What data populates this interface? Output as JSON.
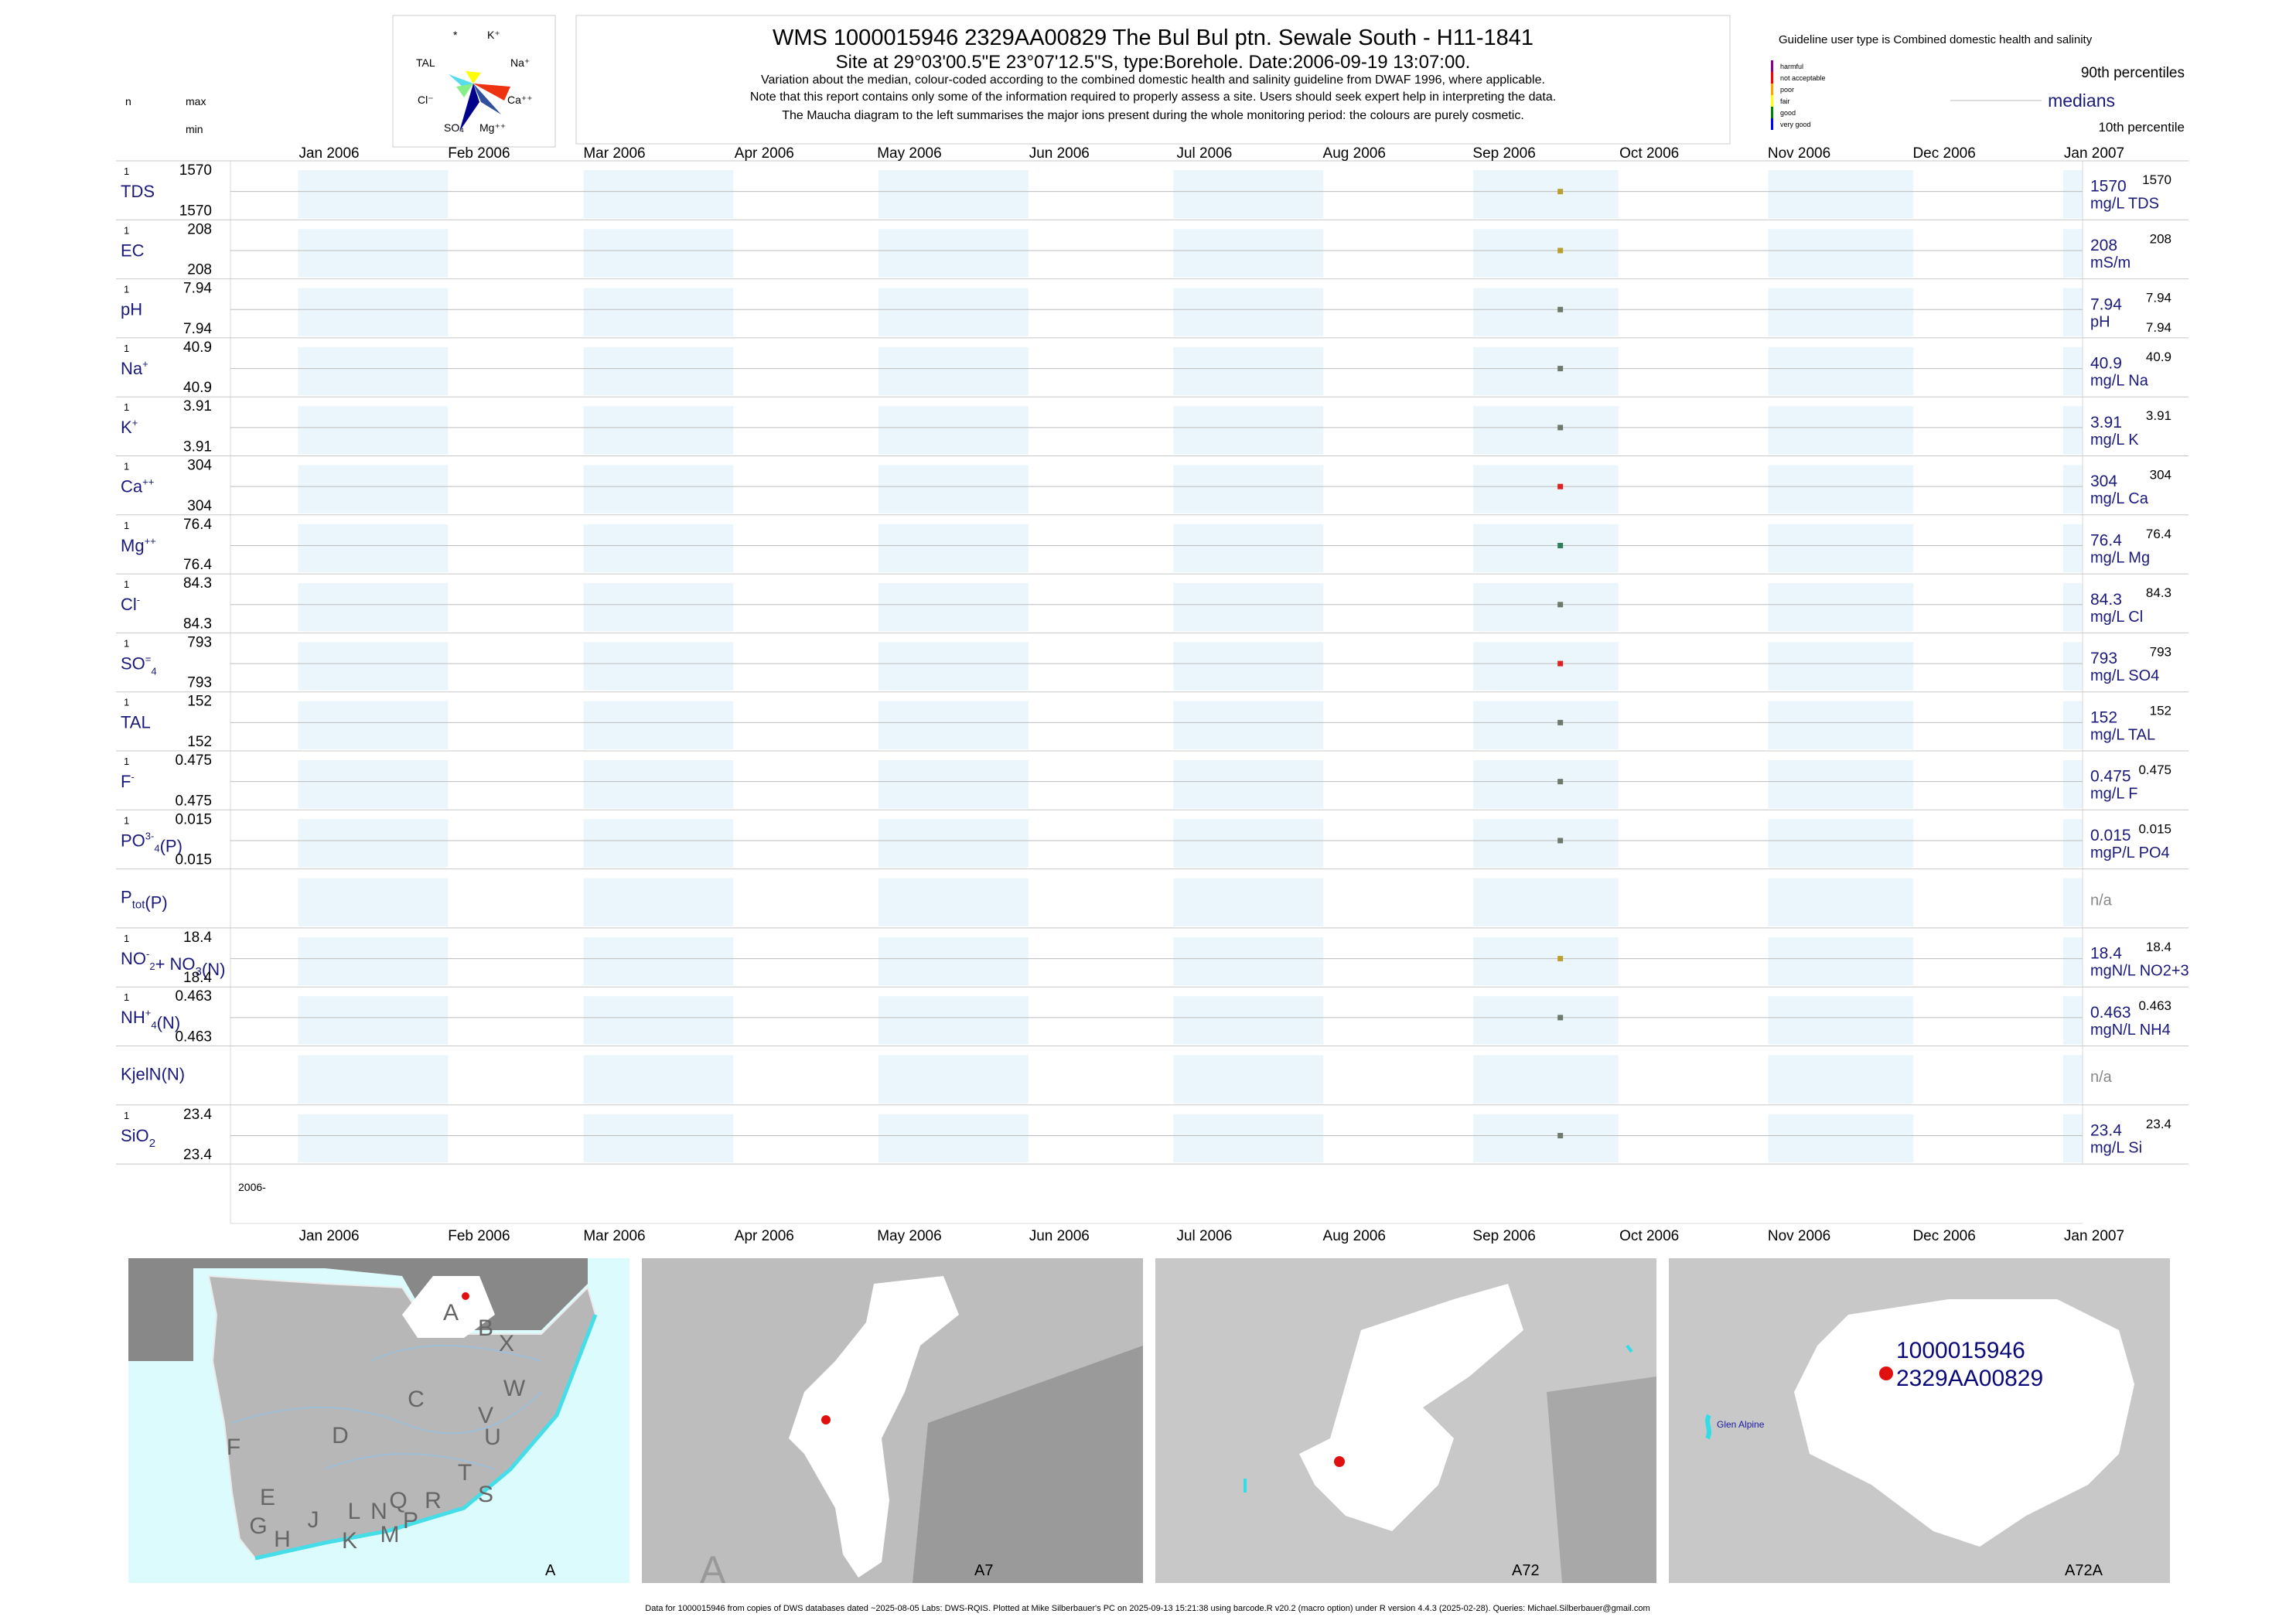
{
  "header": {
    "title": "WMS 1000015946 2329AA00829 The Bul Bul ptn. Sewale South - H11-1841",
    "site": "Site at 29°03'00.5\"E 23°07'12.5\"S, type:Borehole. Date:2006-09-19 13:07:00.",
    "note1": "Variation about the median,  colour-coded according to the combined domestic health and salinity guideline from DWAF 1996, where applicable.",
    "note2": "Note that this report contains only some of the information required to properly assess a site. Users should seek expert help in interpreting the data.",
    "note3": "The Maucha diagram to the left summarises the major ions present during the whole monitoring period: the colours are purely cosmetic."
  },
  "maucha": {
    "labels": [
      "*",
      "K⁺",
      "Na⁺",
      "Ca⁺⁺",
      "Mg⁺⁺",
      "SO₄",
      "Cl⁻",
      "TAL"
    ],
    "colors": [
      "#ffff00",
      "#ee2222",
      "#00008b",
      "#2f4f9f",
      "#88ee88",
      "#55ddee"
    ]
  },
  "legend": {
    "guideline": "Guideline user type is Combined domestic health and salinity",
    "classes": [
      {
        "label": "harmful",
        "color": "#8b008b"
      },
      {
        "label": "not acceptable",
        "color": "#ff0000"
      },
      {
        "label": "poor",
        "color": "#ffa500"
      },
      {
        "label": "fair",
        "color": "#ffff00"
      },
      {
        "label": "good",
        "color": "#008000"
      },
      {
        "label": "very good",
        "color": "#0000ff"
      }
    ],
    "p90": "90th percentiles",
    "medians": "medians",
    "p10": "10th percentile"
  },
  "left_header": {
    "n": "n",
    "max": "max",
    "min": "min"
  },
  "chart_data": {
    "type": "scatter",
    "x_axis": {
      "ticks": [
        "Jan 2006",
        "Feb 2006",
        "Mar 2006",
        "Apr 2006",
        "May 2006",
        "Jun 2006",
        "Jul 2006",
        "Aug 2006",
        "Sep 2006",
        "Oct 2006",
        "Nov 2006",
        "Dec 2006",
        "Jan 2007"
      ],
      "range": [
        "2005-12-18",
        "2007-01-05"
      ],
      "year_label": "2006-"
    },
    "sample_date": "2006-09-19",
    "series": [
      {
        "label": "TDS",
        "n": "1",
        "max": "1570",
        "min": "1570",
        "median": "1570",
        "p90": "1570",
        "p10": "",
        "unit": "mg/L TDS",
        "color": "#b8a030"
      },
      {
        "label": "EC",
        "n": "1",
        "max": "208",
        "min": "208",
        "median": "208",
        "p90": "208",
        "p10": "",
        "unit": "mS/m",
        "color": "#b8a030"
      },
      {
        "label": "pH",
        "n": "1",
        "max": "7.94",
        "min": "7.94",
        "median": "7.94",
        "p90": "7.94",
        "p10": "7.94",
        "unit": "pH",
        "color": "#6b7a6b"
      },
      {
        "label": "Na",
        "sup": "+",
        "n": "1",
        "max": "40.9",
        "min": "40.9",
        "median": "40.9",
        "p90": "40.9",
        "p10": "",
        "unit": "mg/L Na",
        "color": "#6b7a6b"
      },
      {
        "label": "K",
        "sup": "+",
        "n": "1",
        "max": "3.91",
        "min": "3.91",
        "median": "3.91",
        "p90": "3.91",
        "p10": "",
        "unit": "mg/L K",
        "color": "#6b7a6b"
      },
      {
        "label": "Ca",
        "sup": "++",
        "n": "1",
        "max": "304",
        "min": "304",
        "median": "304",
        "p90": "304",
        "p10": "",
        "unit": "mg/L Ca",
        "color": "#dd2222"
      },
      {
        "label": "Mg",
        "sup": "++",
        "n": "1",
        "max": "76.4",
        "min": "76.4",
        "median": "76.4",
        "p90": "76.4",
        "p10": "",
        "unit": "mg/L Mg",
        "color": "#2e7d5b"
      },
      {
        "label": "Cl",
        "sup": "-",
        "n": "1",
        "max": "84.3",
        "min": "84.3",
        "median": "84.3",
        "p90": "84.3",
        "p10": "",
        "unit": "mg/L Cl",
        "color": "#6b7a6b"
      },
      {
        "label": "SO",
        "sub": "4",
        "sup": "=",
        "n": "1",
        "max": "793",
        "min": "793",
        "median": "793",
        "p90": "793",
        "p10": "",
        "unit": "mg/L SO4",
        "color": "#dd2222"
      },
      {
        "label": "TAL",
        "n": "1",
        "max": "152",
        "min": "152",
        "median": "152",
        "p90": "152",
        "p10": "",
        "unit": "mg/L TAL",
        "color": "#6b7a6b"
      },
      {
        "label": "F",
        "sup": "-",
        "n": "1",
        "max": "0.475",
        "min": "0.475",
        "median": "0.475",
        "p90": "0.475",
        "p10": "",
        "unit": "mg/L F",
        "color": "#6b7a6b"
      },
      {
        "label": "PO",
        "sub": "4",
        "sup": "3-",
        "post": "(P)",
        "n": "1",
        "max": "0.015",
        "min": "0.015",
        "median": "0.015",
        "p90": "0.015",
        "p10": "",
        "unit": "mgP/L PO4",
        "color": "#6b7a6b"
      },
      {
        "label": "P",
        "sub": "tot",
        "post": "(P)",
        "n": "",
        "max": "",
        "min": "",
        "median": "n/a",
        "p90": "",
        "p10": "",
        "unit": "",
        "color": ""
      },
      {
        "label": "NO",
        "sub": "2",
        "sup": "-",
        "mid": "+ NO",
        "sub2": "3",
        "post": "(N)",
        "n": "1",
        "max": "18.4",
        "min": "18.4",
        "median": "18.4",
        "p90": "18.4",
        "p10": "",
        "unit": "mgN/L NO2+3",
        "color": "#b8a030"
      },
      {
        "label": "NH",
        "sub": "4",
        "sup": "+",
        "post": "(N)",
        "n": "1",
        "max": "0.463",
        "min": "0.463",
        "median": "0.463",
        "p90": "0.463",
        "p10": "",
        "unit": "mgN/L NH4",
        "color": "#6b7a6b"
      },
      {
        "label": "KjelN(N)",
        "n": "",
        "max": "",
        "min": "",
        "median": "n/a",
        "p90": "",
        "p10": "",
        "unit": "",
        "color": ""
      },
      {
        "label": "SiO",
        "sub": "2",
        "n": "1",
        "max": "23.4",
        "min": "23.4",
        "median": "23.4",
        "p90": "23.4",
        "p10": "",
        "unit": "mg/L Si",
        "color": "#6b7a6b"
      }
    ]
  },
  "maps": [
    {
      "caption": "A",
      "regions": [
        "A",
        "B",
        "X",
        "W",
        "C",
        "V",
        "U",
        "D",
        "T",
        "F",
        "E",
        "S",
        "R",
        "Q",
        "N",
        "L",
        "J",
        "P",
        "M",
        "G",
        "H",
        "K"
      ]
    },
    {
      "caption": "A7",
      "watermark": "A"
    },
    {
      "caption": "A72"
    },
    {
      "caption": "A72A",
      "site_id": "1000015946",
      "site_code": "2329AA00829",
      "place": "Glen Alpine"
    }
  ],
  "footer": "Data for 1000015946 from copies of DWS databases dated ~2025-08-05 Labs: DWS-RQIS. Plotted at Mike Silberbauer's PC on 2025-09-13 15:21:38 using barcode.R v20.2 (macro option) under R version 4.4.3 (2025-02-28). Queries: Michael.Silberbauer@gmail.com"
}
